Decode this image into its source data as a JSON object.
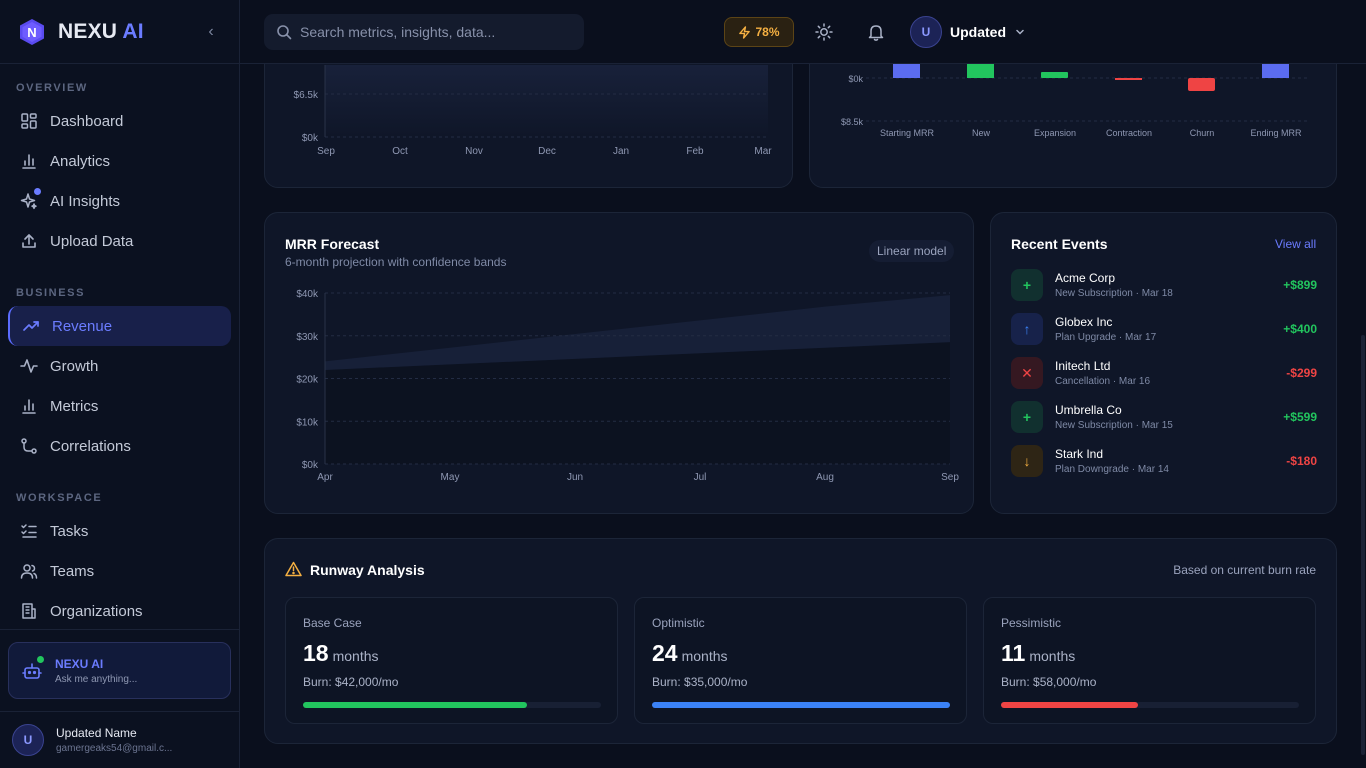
{
  "brand": {
    "name": "NEXU",
    "suffix": "AI"
  },
  "sidebar": {
    "sections": [
      {
        "label": "OVERVIEW"
      },
      {
        "label": "BUSINESS"
      },
      {
        "label": "WORKSPACE"
      }
    ],
    "items": [
      {
        "label": "Dashboard",
        "icon": "grid-icon"
      },
      {
        "label": "Analytics",
        "icon": "bar-chart-icon"
      },
      {
        "label": "AI Insights",
        "icon": "sparkle-icon"
      },
      {
        "label": "Upload Data",
        "icon": "upload-icon"
      },
      {
        "label": "Revenue",
        "icon": "trending-up-icon",
        "active": true
      },
      {
        "label": "Growth",
        "icon": "activity-icon"
      },
      {
        "label": "Metrics",
        "icon": "bar-chart-icon"
      },
      {
        "label": "Correlations",
        "icon": "git-branch-icon"
      },
      {
        "label": "Tasks",
        "icon": "list-checks-icon"
      },
      {
        "label": "Teams",
        "icon": "users-icon"
      },
      {
        "label": "Organizations",
        "icon": "building-icon"
      }
    ],
    "assistant": {
      "title": "NEXU AI",
      "subtitle": "Ask me anything..."
    },
    "user": {
      "initial": "U",
      "name": "Updated Name",
      "email": "gamergeaks54@gmail.c..."
    }
  },
  "header": {
    "search_placeholder": "Search metrics, insights, data...",
    "energy": "78%",
    "profile": {
      "initial": "U",
      "name": "Updated"
    }
  },
  "top_left_chart": {
    "y_ticks": [
      "$6.5k",
      "$0k"
    ],
    "x_ticks": [
      "Sep",
      "Oct",
      "Nov",
      "Dec",
      "Jan",
      "Feb",
      "Mar"
    ]
  },
  "waterfall": {
    "y_ticks": [
      "$0k",
      "$8.5k"
    ],
    "categories": [
      "Starting MRR",
      "New",
      "Expansion",
      "Contraction",
      "Churn",
      "Ending MRR"
    ],
    "colors": [
      "#5b6cf0",
      "#22c55e",
      "#22c55e",
      "#ef4444",
      "#ef4444",
      "#5b6cf0"
    ]
  },
  "forecast": {
    "title": "MRR Forecast",
    "subtitle": "6-month projection with confidence bands",
    "badge": "Linear model",
    "chart_data": {
      "type": "area",
      "x": [
        "Apr",
        "May",
        "Jun",
        "Jul",
        "Aug",
        "Sep"
      ],
      "y_ticks": [
        "$40k",
        "$30k",
        "$20k",
        "$10k",
        "$0k"
      ],
      "ylim": [
        0,
        40000
      ],
      "upper": [
        24000,
        27200,
        30400,
        33600,
        36800,
        39500
      ],
      "lower": [
        22000,
        23300,
        24600,
        25900,
        27200,
        28500
      ]
    }
  },
  "events": {
    "title": "Recent Events",
    "view_all": "View all",
    "items": [
      {
        "name": "Acme Corp",
        "meta": "New Subscription · Mar 18",
        "amount": "+$899",
        "symbol": "+",
        "kind": "positive"
      },
      {
        "name": "Globex Inc",
        "meta": "Plan Upgrade · Mar 17",
        "amount": "+$400",
        "symbol": "↑",
        "kind": "upgrade"
      },
      {
        "name": "Initech Ltd",
        "meta": "Cancellation · Mar 16",
        "amount": "-$299",
        "symbol": "✕",
        "kind": "negative"
      },
      {
        "name": "Umbrella Co",
        "meta": "New Subscription · Mar 15",
        "amount": "+$599",
        "symbol": "+",
        "kind": "positive"
      },
      {
        "name": "Stark Ind",
        "meta": "Plan Downgrade · Mar 14",
        "amount": "-$180",
        "symbol": "↓",
        "kind": "downgrade"
      }
    ]
  },
  "runway": {
    "title": "Runway Analysis",
    "note": "Based on current burn rate",
    "scenarios": [
      {
        "label": "Base Case",
        "months": "18",
        "unit": "months",
        "burn": "Burn: $42,000/mo",
        "fill": 0.75,
        "color": "#22c55e"
      },
      {
        "label": "Optimistic",
        "months": "24",
        "unit": "months",
        "burn": "Burn: $35,000/mo",
        "fill": 1.0,
        "color": "#3b82f6"
      },
      {
        "label": "Pessimistic",
        "months": "11",
        "unit": "months",
        "burn": "Burn: $58,000/mo",
        "fill": 0.46,
        "color": "#ef4444"
      }
    ]
  }
}
